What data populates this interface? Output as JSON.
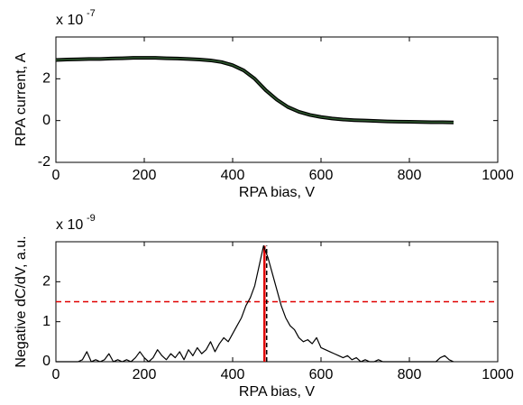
{
  "chart_data": [
    {
      "type": "line",
      "ylabel": "RPA current, A",
      "xlabel": "RPA bias, V",
      "exponent_base": "x 10",
      "exponent_power": "-7",
      "xlim": [
        0,
        1000
      ],
      "xticks": [
        0,
        200,
        400,
        600,
        800,
        1000
      ],
      "ylim": [
        -2,
        4
      ],
      "yticks": [
        -2,
        0,
        2
      ],
      "x": [
        0,
        25,
        50,
        75,
        100,
        125,
        150,
        175,
        200,
        225,
        250,
        275,
        300,
        325,
        350,
        375,
        400,
        425,
        450,
        475,
        500,
        525,
        550,
        575,
        600,
        625,
        650,
        675,
        700,
        725,
        750,
        775,
        800,
        825,
        850,
        875,
        900
      ],
      "series": [
        {
          "color": "#2f5a2f",
          "values": [
            2.9,
            2.92,
            2.93,
            2.95,
            2.95,
            2.97,
            2.98,
            3.0,
            3.0,
            3.0,
            2.98,
            2.97,
            2.95,
            2.92,
            2.88,
            2.8,
            2.65,
            2.4,
            2.0,
            1.45,
            1.0,
            0.65,
            0.42,
            0.27,
            0.17,
            0.1,
            0.05,
            0.02,
            0.0,
            -0.02,
            -0.04,
            -0.05,
            -0.06,
            -0.07,
            -0.08,
            -0.08,
            -0.09
          ]
        }
      ]
    },
    {
      "type": "line",
      "ylabel": "Negative dC/dV, a.u.",
      "xlabel": "RPA bias, V",
      "exponent_base": "x 10",
      "exponent_power": "-9",
      "xlim": [
        0,
        1000
      ],
      "xticks": [
        0,
        200,
        400,
        600,
        800,
        1000
      ],
      "ylim": [
        0,
        3
      ],
      "yticks": [
        0,
        1,
        2
      ],
      "x": [
        0,
        10,
        20,
        30,
        40,
        50,
        60,
        70,
        80,
        90,
        100,
        110,
        120,
        130,
        140,
        150,
        160,
        170,
        180,
        190,
        200,
        210,
        220,
        230,
        240,
        250,
        260,
        270,
        280,
        290,
        300,
        310,
        320,
        330,
        340,
        350,
        360,
        370,
        380,
        390,
        400,
        410,
        420,
        430,
        440,
        450,
        460,
        470,
        480,
        490,
        500,
        510,
        520,
        530,
        540,
        550,
        560,
        570,
        580,
        590,
        600,
        610,
        620,
        630,
        640,
        650,
        660,
        670,
        680,
        690,
        700,
        710,
        720,
        730,
        740,
        750,
        760,
        770,
        780,
        790,
        800,
        810,
        820,
        830,
        840,
        850,
        860,
        870,
        880,
        890,
        900
      ],
      "series": [
        {
          "color": "#000000",
          "values": [
            0,
            0,
            0,
            0,
            0,
            0,
            0.05,
            0.25,
            0,
            0.05,
            0,
            0.05,
            0.2,
            0,
            0.05,
            0,
            0.05,
            0,
            0.1,
            0.25,
            0.1,
            0,
            0.1,
            0.3,
            0.15,
            0.05,
            0.2,
            0.1,
            0.25,
            0.05,
            0.3,
            0.15,
            0.35,
            0.2,
            0.3,
            0.5,
            0.25,
            0.45,
            0.6,
            0.5,
            0.7,
            0.9,
            1.1,
            1.4,
            1.6,
            1.9,
            2.4,
            2.9,
            2.6,
            2.2,
            1.8,
            1.4,
            1.1,
            0.9,
            0.8,
            0.6,
            0.5,
            0.55,
            0.45,
            0.6,
            0.35,
            0.3,
            0.25,
            0.2,
            0.15,
            0.1,
            0.15,
            0.05,
            0.1,
            0,
            0.05,
            0,
            0,
            0.05,
            0,
            0,
            0,
            0,
            0,
            0,
            0,
            0,
            0,
            0,
            0,
            0,
            0,
            0.1,
            0.15,
            0.05,
            0
          ]
        }
      ],
      "hline": {
        "value": 1.5,
        "color": "#e00000"
      },
      "marker_top": 2.9,
      "markers": [
        {
          "x": 472,
          "color": "#e00000",
          "dashed": false
        },
        {
          "x": 477,
          "color": "#000000",
          "dashed": true
        }
      ]
    }
  ]
}
